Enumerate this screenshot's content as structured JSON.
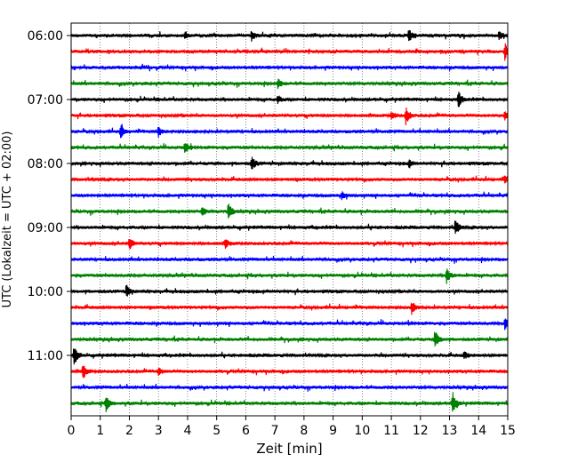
{
  "chart_data": {
    "type": "line",
    "subtype": "helicorder",
    "xlabel": "Zeit  [min]",
    "ylabel": "UTC (Lokalzeit = UTC + 02:00)",
    "xlim": [
      0,
      15
    ],
    "x_ticks": [
      0,
      1,
      2,
      3,
      4,
      5,
      6,
      7,
      8,
      9,
      10,
      11,
      12,
      13,
      14,
      15
    ],
    "x_tick_labels": [
      "0",
      "1",
      "2",
      "3",
      "4",
      "5",
      "6",
      "7",
      "8",
      "9",
      "10",
      "11",
      "12",
      "13",
      "14",
      "15"
    ],
    "y_tick_labels": [
      "06:00",
      "07:00",
      "08:00",
      "09:00",
      "10:00",
      "11:00"
    ],
    "y_tick_traces": [
      0,
      4,
      8,
      12,
      16,
      20
    ],
    "grid": "vertical dotted at each minute",
    "trace_minutes": 15,
    "trace_colors": [
      "#000000",
      "#ff0000",
      "#0000ff",
      "#008000"
    ],
    "traces": [
      {
        "start": "06:00",
        "color": "#000000",
        "events": [
          [
            6.2,
            6
          ],
          [
            11.6,
            7
          ],
          [
            14.7,
            5
          ],
          [
            3.9,
            4
          ]
        ]
      },
      {
        "start": "06:15",
        "color": "#ff0000",
        "events": [
          [
            14.9,
            9
          ]
        ]
      },
      {
        "start": "06:30",
        "color": "#0000ff",
        "events": []
      },
      {
        "start": "06:45",
        "color": "#008000",
        "events": [
          [
            7.1,
            5
          ]
        ]
      },
      {
        "start": "07:00",
        "color": "#000000",
        "events": [
          [
            13.3,
            10
          ],
          [
            7.1,
            4
          ]
        ]
      },
      {
        "start": "07:15",
        "color": "#ff0000",
        "events": [
          [
            11.5,
            10
          ],
          [
            11.0,
            5
          ],
          [
            14.9,
            5
          ]
        ]
      },
      {
        "start": "07:30",
        "color": "#0000ff",
        "events": [
          [
            1.7,
            8
          ],
          [
            3.0,
            6
          ]
        ]
      },
      {
        "start": "07:45",
        "color": "#008000",
        "events": [
          [
            3.9,
            7
          ]
        ]
      },
      {
        "start": "08:00",
        "color": "#000000",
        "events": [
          [
            6.2,
            9
          ],
          [
            11.6,
            4
          ]
        ]
      },
      {
        "start": "08:15",
        "color": "#ff0000",
        "events": [
          [
            14.9,
            5
          ]
        ]
      },
      {
        "start": "08:30",
        "color": "#0000ff",
        "events": [
          [
            9.3,
            4
          ]
        ]
      },
      {
        "start": "08:45",
        "color": "#008000",
        "events": [
          [
            5.4,
            12
          ],
          [
            4.5,
            6
          ]
        ]
      },
      {
        "start": "09:00",
        "color": "#000000",
        "events": [
          [
            13.2,
            10
          ]
        ]
      },
      {
        "start": "09:15",
        "color": "#ff0000",
        "events": [
          [
            2.0,
            7
          ],
          [
            5.3,
            5
          ]
        ]
      },
      {
        "start": "09:30",
        "color": "#0000ff",
        "events": []
      },
      {
        "start": "09:45",
        "color": "#008000",
        "events": [
          [
            12.9,
            9
          ]
        ]
      },
      {
        "start": "10:00",
        "color": "#000000",
        "events": [
          [
            1.9,
            7
          ]
        ]
      },
      {
        "start": "10:15",
        "color": "#ff0000",
        "events": [
          [
            11.7,
            7
          ]
        ]
      },
      {
        "start": "10:30",
        "color": "#0000ff",
        "events": [
          [
            14.9,
            7
          ]
        ]
      },
      {
        "start": "10:45",
        "color": "#008000",
        "events": [
          [
            12.5,
            11
          ]
        ]
      },
      {
        "start": "11:00",
        "color": "#000000",
        "events": [
          [
            0.1,
            13
          ],
          [
            13.5,
            5
          ]
        ]
      },
      {
        "start": "11:15",
        "color": "#ff0000",
        "events": [
          [
            0.4,
            9
          ],
          [
            3.0,
            4
          ]
        ]
      },
      {
        "start": "11:30",
        "color": "#0000ff",
        "events": []
      },
      {
        "start": "11:45",
        "color": "#008000",
        "events": [
          [
            1.2,
            9
          ],
          [
            13.1,
            13
          ]
        ]
      }
    ]
  }
}
